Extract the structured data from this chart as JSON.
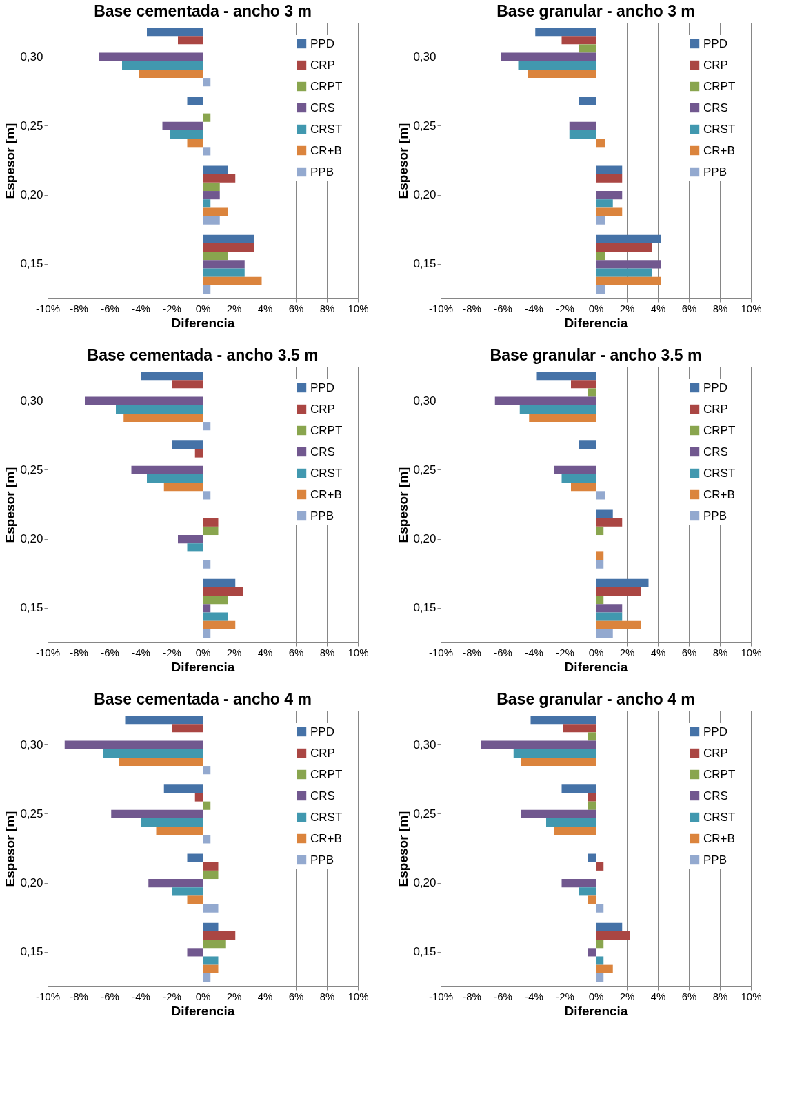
{
  "chart_data": [
    {
      "type": "bar",
      "orientation": "horizontal",
      "title": "Base cementada - ancho 3 m",
      "xlabel": "Diferencia",
      "ylabel": "Espesor [m]",
      "categories": [
        "0,30",
        "0,25",
        "0,20",
        "0,15"
      ],
      "xlim": [
        -10,
        10
      ],
      "xticks": [
        {
          "value": -10,
          "label": "-10%"
        },
        {
          "value": -8,
          "label": "-8%"
        },
        {
          "value": -6,
          "label": "-6%"
        },
        {
          "value": -4,
          "label": "-4%"
        },
        {
          "value": -2,
          "label": "-2%"
        },
        {
          "value": 0,
          "label": "0%"
        },
        {
          "value": 2,
          "label": "2%"
        },
        {
          "value": 4,
          "label": "4%"
        },
        {
          "value": 6,
          "label": "6%"
        },
        {
          "value": 8,
          "label": "8%"
        },
        {
          "value": 10,
          "label": "10%"
        }
      ],
      "grid": "x",
      "legend": "top right",
      "series": [
        {
          "name": "PPD",
          "color": "#4572a7",
          "values": [
            -3.6,
            -1.0,
            1.6,
            3.3
          ]
        },
        {
          "name": "CRP",
          "color": "#aa4643",
          "values": [
            -1.6,
            0,
            2.1,
            3.3
          ]
        },
        {
          "name": "CRPT",
          "color": "#89a54e",
          "values": [
            0,
            0.5,
            1.1,
            1.6
          ]
        },
        {
          "name": "CRS",
          "color": "#71588f",
          "values": [
            -6.7,
            -2.6,
            1.1,
            2.7
          ]
        },
        {
          "name": "CRST",
          "color": "#4198af",
          "values": [
            -5.2,
            -2.1,
            0.5,
            2.7
          ]
        },
        {
          "name": "CR+B",
          "color": "#db843d",
          "values": [
            -4.1,
            -1.0,
            1.6,
            3.8
          ]
        },
        {
          "name": "PPB",
          "color": "#93a9cf",
          "values": [
            0.5,
            0.5,
            1.1,
            0.5
          ]
        }
      ]
    },
    {
      "type": "bar",
      "orientation": "horizontal",
      "title": "Base granular - ancho 3 m",
      "xlabel": "Diferencia",
      "ylabel": "Espesor [m]",
      "categories": [
        "0,30",
        "0,25",
        "0,20",
        "0,15"
      ],
      "xlim": [
        -10,
        10
      ],
      "xticks": [
        {
          "value": -10,
          "label": "-10%"
        },
        {
          "value": -8,
          "label": "-8%"
        },
        {
          "value": -6,
          "label": "-6%"
        },
        {
          "value": -4,
          "label": "-4%"
        },
        {
          "value": -2,
          "label": "-2%"
        },
        {
          "value": 0,
          "label": "0%"
        },
        {
          "value": 2,
          "label": "2%"
        },
        {
          "value": 4,
          "label": "4%"
        },
        {
          "value": 6,
          "label": "6%"
        },
        {
          "value": 8,
          "label": "8%"
        },
        {
          "value": 10,
          "label": "10%"
        }
      ],
      "grid": "x",
      "legend": "top right",
      "series": [
        {
          "name": "PPD",
          "color": "#4572a7",
          "values": [
            -3.9,
            -1.1,
            1.7,
            4.2
          ]
        },
        {
          "name": "CRP",
          "color": "#aa4643",
          "values": [
            -2.2,
            0,
            1.7,
            3.6
          ]
        },
        {
          "name": "CRPT",
          "color": "#89a54e",
          "values": [
            -1.1,
            0,
            0,
            0.6
          ]
        },
        {
          "name": "CRS",
          "color": "#71588f",
          "values": [
            -6.1,
            -1.7,
            1.7,
            4.2
          ]
        },
        {
          "name": "CRST",
          "color": "#4198af",
          "values": [
            -5.0,
            -1.7,
            1.1,
            3.6
          ]
        },
        {
          "name": "CR+B",
          "color": "#db843d",
          "values": [
            -4.4,
            0.6,
            1.7,
            4.2
          ]
        },
        {
          "name": "PPB",
          "color": "#93a9cf",
          "values": [
            0,
            0,
            0.6,
            0.6
          ]
        }
      ]
    },
    {
      "type": "bar",
      "orientation": "horizontal",
      "title": "Base cementada - ancho 3.5 m",
      "xlabel": "Diferencia",
      "ylabel": "Espesor [m]",
      "categories": [
        "0,30",
        "0,25",
        "0,20",
        "0,15"
      ],
      "xlim": [
        -10,
        10
      ],
      "xticks": [
        {
          "value": -10,
          "label": "-10%"
        },
        {
          "value": -8,
          "label": "-8%"
        },
        {
          "value": -6,
          "label": "-6%"
        },
        {
          "value": -4,
          "label": "-4%"
        },
        {
          "value": -2,
          "label": "-2%"
        },
        {
          "value": 0,
          "label": "0%"
        },
        {
          "value": 2,
          "label": "2%"
        },
        {
          "value": 4,
          "label": "4%"
        },
        {
          "value": 6,
          "label": "6%"
        },
        {
          "value": 8,
          "label": "8%"
        },
        {
          "value": 10,
          "label": "10%"
        }
      ],
      "grid": "x",
      "legend": "top right",
      "series": [
        {
          "name": "PPD",
          "color": "#4572a7",
          "values": [
            -4.0,
            -2.0,
            0,
            2.1
          ]
        },
        {
          "name": "CRP",
          "color": "#aa4643",
          "values": [
            -2.0,
            -0.5,
            1.0,
            2.6
          ]
        },
        {
          "name": "CRPT",
          "color": "#89a54e",
          "values": [
            0,
            0,
            1.0,
            1.6
          ]
        },
        {
          "name": "CRS",
          "color": "#71588f",
          "values": [
            -7.6,
            -4.6,
            -1.6,
            0.5
          ]
        },
        {
          "name": "CRST",
          "color": "#4198af",
          "values": [
            -5.6,
            -3.6,
            -1.0,
            1.6
          ]
        },
        {
          "name": "CR+B",
          "color": "#db843d",
          "values": [
            -5.1,
            -2.5,
            0,
            2.1
          ]
        },
        {
          "name": "PPB",
          "color": "#93a9cf",
          "values": [
            0.5,
            0.5,
            0.5,
            0.5
          ]
        }
      ]
    },
    {
      "type": "bar",
      "orientation": "horizontal",
      "title": "Base granular - ancho 3.5 m",
      "xlabel": "Diferencia",
      "ylabel": "Espesor [m]",
      "categories": [
        "0,30",
        "0,25",
        "0,20",
        "0,15"
      ],
      "xlim": [
        -10,
        10
      ],
      "xticks": [
        {
          "value": -10,
          "label": "-10%"
        },
        {
          "value": -8,
          "label": "-8%"
        },
        {
          "value": -6,
          "label": "-6%"
        },
        {
          "value": -4,
          "label": "-4%"
        },
        {
          "value": -2,
          "label": "-2%"
        },
        {
          "value": 0,
          "label": "0%"
        },
        {
          "value": 2,
          "label": "2%"
        },
        {
          "value": 4,
          "label": "4%"
        },
        {
          "value": 6,
          "label": "6%"
        },
        {
          "value": 8,
          "label": "8%"
        },
        {
          "value": 10,
          "label": "10%"
        }
      ],
      "grid": "x",
      "legend": "top right",
      "series": [
        {
          "name": "PPD",
          "color": "#4572a7",
          "values": [
            -3.8,
            -1.1,
            1.1,
            3.4
          ]
        },
        {
          "name": "CRP",
          "color": "#aa4643",
          "values": [
            -1.6,
            0,
            1.7,
            2.9
          ]
        },
        {
          "name": "CRPT",
          "color": "#89a54e",
          "values": [
            -0.5,
            0,
            0.5,
            0.5
          ]
        },
        {
          "name": "CRS",
          "color": "#71588f",
          "values": [
            -6.5,
            -2.7,
            0,
            1.7
          ]
        },
        {
          "name": "CRST",
          "color": "#4198af",
          "values": [
            -4.9,
            -2.2,
            0,
            1.7
          ]
        },
        {
          "name": "CR+B",
          "color": "#db843d",
          "values": [
            -4.3,
            -1.6,
            0.5,
            2.9
          ]
        },
        {
          "name": "PPB",
          "color": "#93a9cf",
          "values": [
            0,
            0.6,
            0.5,
            1.1
          ]
        }
      ]
    },
    {
      "type": "bar",
      "orientation": "horizontal",
      "title": "Base cementada - ancho 4 m",
      "xlabel": "Diferencia",
      "ylabel": "Espesor [m]",
      "categories": [
        "0,30",
        "0,25",
        "0,20",
        "0,15"
      ],
      "xlim": [
        -10,
        10
      ],
      "xticks": [
        {
          "value": -10,
          "label": "-10%"
        },
        {
          "value": -8,
          "label": "-8%"
        },
        {
          "value": -6,
          "label": "-6%"
        },
        {
          "value": -4,
          "label": "-4%"
        },
        {
          "value": -2,
          "label": "-2%"
        },
        {
          "value": 0,
          "label": "0%"
        },
        {
          "value": 2,
          "label": "2%"
        },
        {
          "value": 4,
          "label": "4%"
        },
        {
          "value": 6,
          "label": "6%"
        },
        {
          "value": 8,
          "label": "8%"
        },
        {
          "value": 10,
          "label": "10%"
        }
      ],
      "grid": "x",
      "legend": "top right",
      "series": [
        {
          "name": "PPD",
          "color": "#4572a7",
          "values": [
            -5.0,
            -2.5,
            -1.0,
            1.0
          ]
        },
        {
          "name": "CRP",
          "color": "#aa4643",
          "values": [
            -2.0,
            -0.5,
            1.0,
            2.1
          ]
        },
        {
          "name": "CRPT",
          "color": "#89a54e",
          "values": [
            0,
            0.5,
            1.0,
            1.5
          ]
        },
        {
          "name": "CRS",
          "color": "#71588f",
          "values": [
            -8.9,
            -5.9,
            -3.5,
            -1.0
          ]
        },
        {
          "name": "CRST",
          "color": "#4198af",
          "values": [
            -6.4,
            -4.0,
            -2.0,
            1.0
          ]
        },
        {
          "name": "CR+B",
          "color": "#db843d",
          "values": [
            -5.4,
            -3.0,
            -1.0,
            1.0
          ]
        },
        {
          "name": "PPB",
          "color": "#93a9cf",
          "values": [
            0.5,
            0.5,
            1.0,
            0.5
          ]
        }
      ]
    },
    {
      "type": "bar",
      "orientation": "horizontal",
      "title": "Base granular - ancho 4 m",
      "xlabel": "Diferencia",
      "ylabel": "Espesor [m]",
      "categories": [
        "0,30",
        "0,25",
        "0,20",
        "0,15"
      ],
      "xlim": [
        -10,
        10
      ],
      "xticks": [
        {
          "value": -10,
          "label": "-10%"
        },
        {
          "value": -8,
          "label": "-8%"
        },
        {
          "value": -6,
          "label": "-6%"
        },
        {
          "value": -4,
          "label": "-4%"
        },
        {
          "value": -2,
          "label": "-2%"
        },
        {
          "value": 0,
          "label": "0%"
        },
        {
          "value": 2,
          "label": "2%"
        },
        {
          "value": 4,
          "label": "4%"
        },
        {
          "value": 6,
          "label": "6%"
        },
        {
          "value": 8,
          "label": "8%"
        },
        {
          "value": 10,
          "label": "10%"
        }
      ],
      "grid": "x",
      "legend": "top right",
      "series": [
        {
          "name": "PPD",
          "color": "#4572a7",
          "values": [
            -4.2,
            -2.2,
            -0.5,
            1.7
          ]
        },
        {
          "name": "CRP",
          "color": "#aa4643",
          "values": [
            -2.1,
            -0.5,
            0.5,
            2.2
          ]
        },
        {
          "name": "CRPT",
          "color": "#89a54e",
          "values": [
            -0.5,
            -0.5,
            0,
            0.5
          ]
        },
        {
          "name": "CRS",
          "color": "#71588f",
          "values": [
            -7.4,
            -4.8,
            -2.2,
            -0.5
          ]
        },
        {
          "name": "CRST",
          "color": "#4198af",
          "values": [
            -5.3,
            -3.2,
            -1.1,
            0.5
          ]
        },
        {
          "name": "CR+B",
          "color": "#db843d",
          "values": [
            -4.8,
            -2.7,
            -0.5,
            1.1
          ]
        },
        {
          "name": "PPB",
          "color": "#93a9cf",
          "values": [
            0,
            0,
            0.5,
            0.5
          ]
        }
      ]
    }
  ]
}
